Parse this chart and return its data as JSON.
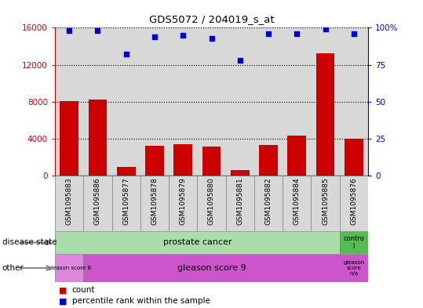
{
  "title": "GDS5072 / 204019_s_at",
  "samples": [
    "GSM1095883",
    "GSM1095886",
    "GSM1095877",
    "GSM1095878",
    "GSM1095879",
    "GSM1095880",
    "GSM1095881",
    "GSM1095882",
    "GSM1095884",
    "GSM1095885",
    "GSM1095876"
  ],
  "counts": [
    8100,
    8200,
    900,
    3200,
    3400,
    3100,
    600,
    3300,
    4300,
    13200,
    4000
  ],
  "percentiles": [
    98,
    98,
    82,
    94,
    95,
    93,
    78,
    96,
    96,
    99,
    96
  ],
  "ylim_left": [
    0,
    16000
  ],
  "ylim_right": [
    0,
    100
  ],
  "yticks_left": [
    0,
    4000,
    8000,
    12000,
    16000
  ],
  "yticks_right": [
    0,
    25,
    50,
    75,
    100
  ],
  "bar_color": "#cc0000",
  "dot_color": "#0000cc",
  "grid_color": "#000000",
  "pc_color": "#aaddaa",
  "ctrl_color": "#55bb55",
  "g8_color": "#dd88dd",
  "g9_color": "#cc55cc",
  "gna_color": "#cc55cc",
  "bar_bg_color": "#d8d8d8",
  "legend_count_color": "#cc0000",
  "legend_dot_color": "#0000cc"
}
